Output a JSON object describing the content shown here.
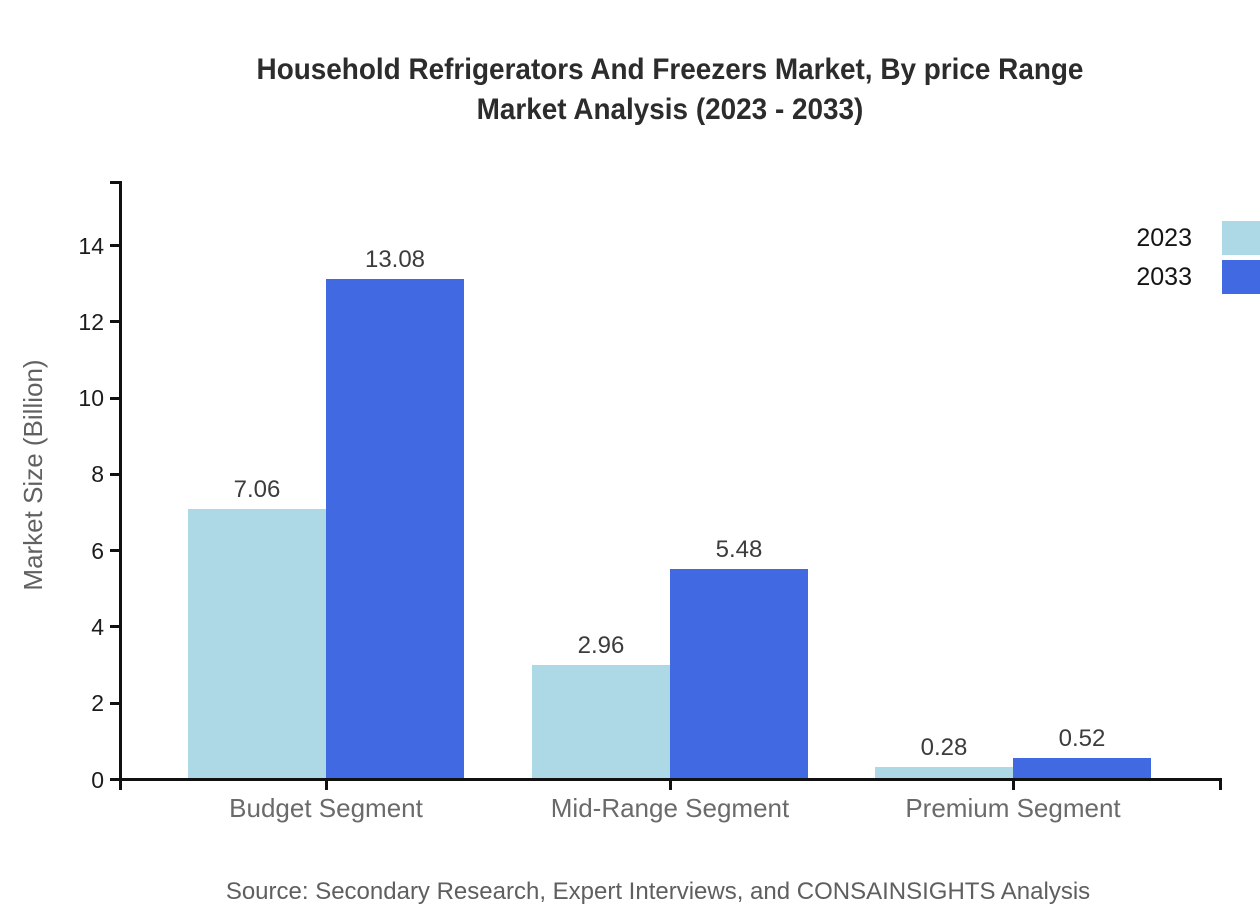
{
  "title": {
    "line1": "Household Refrigerators And Freezers Market, By price Range",
    "line2": "Market Analysis (2023 - 2033)"
  },
  "source": "Source: Secondary Research, Expert Interviews, and CONSAINSIGHTS Analysis",
  "y_axis": {
    "title": "Market Size (Billion)",
    "ticks": [
      0,
      2,
      4,
      6,
      8,
      10,
      12,
      14
    ]
  },
  "colors": {
    "series_2023": "#ADD8E6",
    "series_2033": "#4169E1",
    "axis": "#111111",
    "title_text": "#2c2c2c",
    "muted_text": "#6a6a6a"
  },
  "chart_data": {
    "type": "bar",
    "title": "Household Refrigerators And Freezers Market, By price Range Market Analysis (2023 - 2033)",
    "categories": [
      "Budget Segment",
      "Mid-Range Segment",
      "Premium Segment"
    ],
    "series": [
      {
        "name": "2023",
        "color": "#ADD8E6",
        "values": [
          7.06,
          2.96,
          0.28
        ]
      },
      {
        "name": "2033",
        "color": "#4169E1",
        "values": [
          13.08,
          5.48,
          0.52
        ]
      }
    ],
    "xlabel": "",
    "ylabel": "Market Size (Billion)",
    "ylim": [
      0,
      15.7
    ],
    "ytick_step": 2,
    "grid": false,
    "value_labels": true,
    "legend_position": "top-right"
  }
}
